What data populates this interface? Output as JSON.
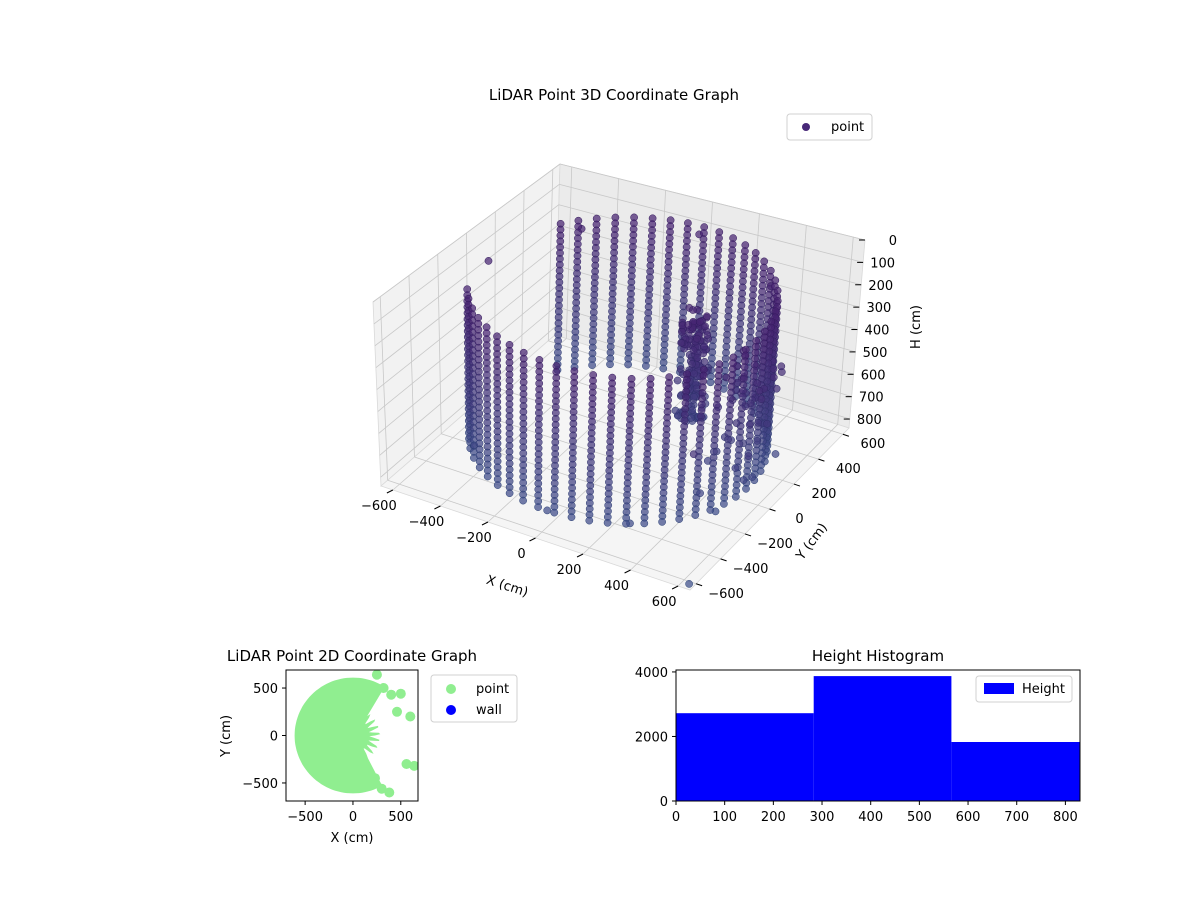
{
  "chart_data": [
    {
      "type": "scatter",
      "projection": "3d",
      "title": "LiDAR Point 3D Coordinate Graph",
      "xlabel": "X (cm)",
      "ylabel": "Y (cm)",
      "zlabel": "H (cm)",
      "xlim": [
        -650,
        650
      ],
      "ylim": [
        -650,
        650
      ],
      "zlim": [
        0,
        840
      ],
      "z_inverted": true,
      "x_ticks": [
        "-600",
        "-400",
        "-200",
        "0",
        "200",
        "400",
        "600"
      ],
      "y_ticks": [
        "-600",
        "-400",
        "-200",
        "0",
        "200",
        "400",
        "600"
      ],
      "z_ticks": [
        "0",
        "100",
        "200",
        "300",
        "400",
        "500",
        "600",
        "700",
        "800"
      ],
      "legend": {
        "position": "top-right",
        "entries": [
          {
            "label": "point",
            "color": "#482878"
          }
        ]
      },
      "color_map": "viridis (height)",
      "series": [
        {
          "name": "point",
          "description_visible": "cylindrical wall of points, radius ~560 cm, opening toward +X, with a tall object near the inner wall and scattered points toward +X",
          "sample_points": [
            [
              -560,
              0,
              100
            ],
            [
              -400,
              390,
              100
            ],
            [
              0,
              560,
              100
            ],
            [
              400,
              390,
              120
            ],
            [
              -400,
              -390,
              700
            ],
            [
              0,
              -560,
              760
            ],
            [
              300,
              -470,
              760
            ],
            [
              520,
              -200,
              780
            ],
            [
              230,
              120,
              400
            ],
            [
              260,
              80,
              560
            ],
            [
              560,
              120,
              250
            ],
            [
              600,
              -50,
              420
            ],
            [
              640,
              -200,
              470
            ],
            [
              500,
              -300,
              640
            ],
            [
              560,
              -500,
              300
            ],
            [
              640,
              -640,
              820
            ]
          ]
        }
      ],
      "grid": true
    },
    {
      "type": "scatter",
      "title": "LiDAR Point 2D Coordinate Graph",
      "xlabel": "X (cm)",
      "ylabel": "Y (cm)",
      "xlim": [
        -700,
        680
      ],
      "ylim": [
        -690,
        690
      ],
      "x_ticks": [
        "−500",
        "0",
        "500"
      ],
      "y_ticks": [
        "500",
        "0",
        "−500"
      ],
      "legend": {
        "position": "outside-right",
        "entries": [
          {
            "label": "point",
            "color": "#90ee90"
          },
          {
            "label": "wall",
            "color": "#0000ff"
          }
        ]
      },
      "series": [
        {
          "name": "point",
          "color": "#90ee90",
          "shape": "filled disc radius ~600 cm with notch opening toward +X"
        },
        {
          "name": "wall",
          "color": "#0000ff",
          "values": []
        }
      ]
    },
    {
      "type": "bar",
      "subtype": "histogram",
      "title": "Height Histogram",
      "bins": [
        [
          0,
          283
        ],
        [
          283,
          566
        ],
        [
          566,
          830
        ]
      ],
      "values": [
        2720,
        3870,
        1830
      ],
      "xlim": [
        0,
        830
      ],
      "ylim": [
        0,
        4060
      ],
      "x_ticks": [
        "0",
        "100",
        "200",
        "300",
        "400",
        "500",
        "600",
        "700",
        "800"
      ],
      "y_ticks": [
        "0",
        "2000",
        "4000"
      ],
      "legend": {
        "position": "top-right",
        "entries": [
          {
            "label": "Height",
            "color": "#0000ff"
          }
        ]
      },
      "color": "#0000ff"
    }
  ]
}
